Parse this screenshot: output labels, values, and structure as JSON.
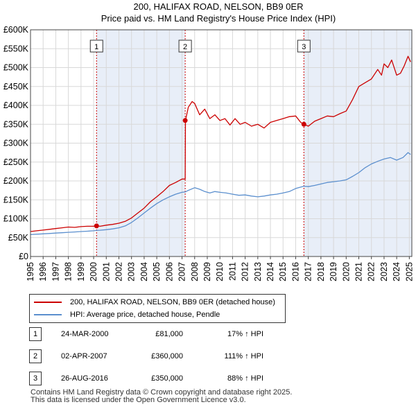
{
  "chart_data": {
    "type": "line",
    "title": "200, HALIFAX ROAD, NELSON, BB9 0ER",
    "subtitle": "Price paid vs. HM Land Registry's House Price Index (HPI)",
    "xlabel": "",
    "ylabel": "",
    "xlim": [
      1995,
      2025.2
    ],
    "ylim": [
      0,
      600000
    ],
    "y_ticks": [
      0,
      50000,
      100000,
      150000,
      200000,
      250000,
      300000,
      350000,
      400000,
      450000,
      500000,
      550000,
      600000
    ],
    "y_tick_labels": [
      "£0",
      "£50K",
      "£100K",
      "£150K",
      "£200K",
      "£250K",
      "£300K",
      "£350K",
      "£400K",
      "£450K",
      "£500K",
      "£550K",
      "£600K"
    ],
    "x_ticks": [
      1995,
      1996,
      1997,
      1998,
      1999,
      2000,
      2001,
      2002,
      2003,
      2004,
      2005,
      2006,
      2007,
      2008,
      2009,
      2010,
      2011,
      2012,
      2013,
      2014,
      2015,
      2016,
      2017,
      2018,
      2019,
      2020,
      2021,
      2022,
      2023,
      2024,
      2025
    ],
    "x_tick_labels": [
      "1995",
      "1996",
      "1997",
      "1998",
      "1999",
      "2000",
      "2001",
      "2002",
      "2003",
      "2004",
      "2005",
      "2006",
      "2007",
      "2008",
      "2009",
      "2010",
      "2011",
      "2012",
      "2013",
      "2014",
      "2015",
      "2016",
      "2017",
      "2018",
      "2019",
      "2020",
      "2021",
      "2022",
      "2023",
      "2024",
      "2025"
    ],
    "grid": true,
    "series": [
      {
        "name": "200, HALIFAX ROAD, NELSON, BB9 0ER (detached house)",
        "color": "#cc0000",
        "x": [
          1995,
          1995.5,
          1996,
          1996.5,
          1997,
          1997.5,
          1998,
          1998.5,
          1999,
          1999.5,
          2000.0,
          2000.23,
          2000.5,
          2001,
          2001.5,
          2002,
          2002.5,
          2003,
          2003.5,
          2004,
          2004.5,
          2005,
          2005.5,
          2006,
          2006.5,
          2007.0,
          2007.25,
          2007.27,
          2007.5,
          2007.8,
          2008.0,
          2008.4,
          2008.8,
          2009.2,
          2009.6,
          2010.0,
          2010.4,
          2010.8,
          2011.2,
          2011.6,
          2012.0,
          2012.5,
          2013.0,
          2013.5,
          2014.0,
          2014.5,
          2015.0,
          2015.5,
          2016.0,
          2016.4,
          2016.65,
          2017.0,
          2017.5,
          2018.0,
          2018.5,
          2019.0,
          2019.5,
          2020.0,
          2020.5,
          2021.0,
          2021.5,
          2022.0,
          2022.5,
          2022.8,
          2023.0,
          2023.3,
          2023.6,
          2024.0,
          2024.3,
          2024.6,
          2024.9,
          2025.1
        ],
        "values": [
          66000,
          68000,
          70000,
          72000,
          74000,
          76000,
          78000,
          77000,
          79000,
          80000,
          80000,
          81000,
          80000,
          83000,
          85000,
          88000,
          93000,
          102000,
          115000,
          128000,
          145000,
          158000,
          172000,
          188000,
          196000,
          205000,
          205000,
          360000,
          395000,
          410000,
          405000,
          375000,
          390000,
          365000,
          375000,
          360000,
          365000,
          348000,
          365000,
          350000,
          355000,
          345000,
          350000,
          340000,
          355000,
          360000,
          365000,
          370000,
          372000,
          355000,
          350000,
          345000,
          358000,
          365000,
          372000,
          370000,
          378000,
          385000,
          415000,
          450000,
          460000,
          470000,
          495000,
          480000,
          510000,
          500000,
          520000,
          480000,
          485000,
          505000,
          530000,
          515000
        ]
      },
      {
        "name": "HPI: Average price, detached house, Pendle",
        "color": "#5b8fce",
        "x": [
          1995,
          1995.5,
          1996,
          1996.5,
          1997,
          1997.5,
          1998,
          1998.5,
          1999,
          1999.5,
          2000.0,
          2000.23,
          2000.5,
          2001,
          2001.5,
          2002,
          2002.5,
          2003,
          2003.5,
          2004,
          2004.5,
          2005,
          2005.5,
          2006,
          2006.5,
          2007.0,
          2007.27,
          2007.5,
          2008.0,
          2008.4,
          2008.8,
          2009.2,
          2009.6,
          2010.0,
          2010.5,
          2011.0,
          2011.5,
          2012.0,
          2012.5,
          2013.0,
          2013.5,
          2014.0,
          2014.5,
          2015.0,
          2015.5,
          2016.0,
          2016.65,
          2017.0,
          2017.5,
          2018.0,
          2018.5,
          2019.0,
          2019.5,
          2020.0,
          2020.5,
          2021.0,
          2021.5,
          2022.0,
          2022.5,
          2023.0,
          2023.5,
          2024.0,
          2024.5,
          2024.9,
          2025.1
        ],
        "values": [
          58000,
          59000,
          60000,
          61000,
          62000,
          63000,
          64000,
          65000,
          66000,
          67000,
          68000,
          69000,
          69500,
          71000,
          73000,
          76000,
          81000,
          90000,
          102000,
          115000,
          128000,
          140000,
          150000,
          158000,
          165000,
          170000,
          171000,
          175000,
          182000,
          178000,
          172000,
          168000,
          172000,
          170000,
          168000,
          165000,
          162000,
          163000,
          160000,
          158000,
          160000,
          163000,
          165000,
          168000,
          172000,
          180000,
          186000,
          185000,
          188000,
          192000,
          196000,
          198000,
          200000,
          203000,
          212000,
          222000,
          235000,
          245000,
          252000,
          258000,
          262000,
          255000,
          262000,
          275000,
          270000
        ]
      }
    ],
    "transactions": [
      {
        "label": "1",
        "x": 2000.23,
        "price": 81000
      },
      {
        "label": "2",
        "x": 2007.25,
        "price": 360000
      },
      {
        "label": "3",
        "x": 2016.65,
        "price": 350000
      }
    ]
  },
  "legend": {
    "property_label": "200, HALIFAX ROAD, NELSON, BB9 0ER (detached house)",
    "hpi_label": "HPI: Average price, detached house, Pendle",
    "property_color": "#cc0000",
    "hpi_color": "#5b8fce"
  },
  "table": {
    "rows": [
      {
        "num": "1",
        "date": "24-MAR-2000",
        "price": "£81,000",
        "hpi": "17% ↑ HPI"
      },
      {
        "num": "2",
        "date": "02-APR-2007",
        "price": "£360,000",
        "hpi": "111% ↑ HPI"
      },
      {
        "num": "3",
        "date": "26-AUG-2016",
        "price": "£350,000",
        "hpi": "88% ↑ HPI"
      }
    ]
  },
  "footer": {
    "line1": "Contains HM Land Registry data © Crown copyright and database right 2025.",
    "line2": "This data is licensed under the Open Government Licence v3.0."
  },
  "colors": {
    "grid": "#d8d8d8",
    "axis": "#444444",
    "shade": "#e8eef8",
    "vline": "#cc0000"
  }
}
